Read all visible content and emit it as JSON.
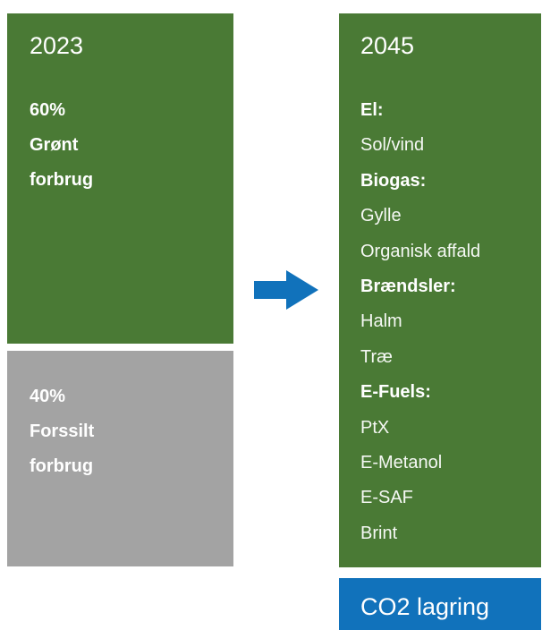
{
  "left": {
    "title": "2023",
    "green_lines": [
      "60%",
      "Grønt",
      "forbrug"
    ],
    "gray_lines": [
      "40%",
      "Forssilt",
      "forbrug"
    ]
  },
  "right": {
    "title": "2045",
    "groups": [
      {
        "heading": "El:",
        "items": [
          "Sol/vind"
        ]
      },
      {
        "heading": "Biogas:",
        "items": [
          "Gylle",
          "Organisk affald"
        ]
      },
      {
        "heading": "Brændsler:",
        "items": [
          "Halm",
          "Træ"
        ]
      },
      {
        "heading": "E-Fuels:",
        "items": [
          "PtX",
          "E-Metanol",
          "E-SAF",
          "Brint"
        ]
      }
    ]
  },
  "footer": "CO2 lagring"
}
